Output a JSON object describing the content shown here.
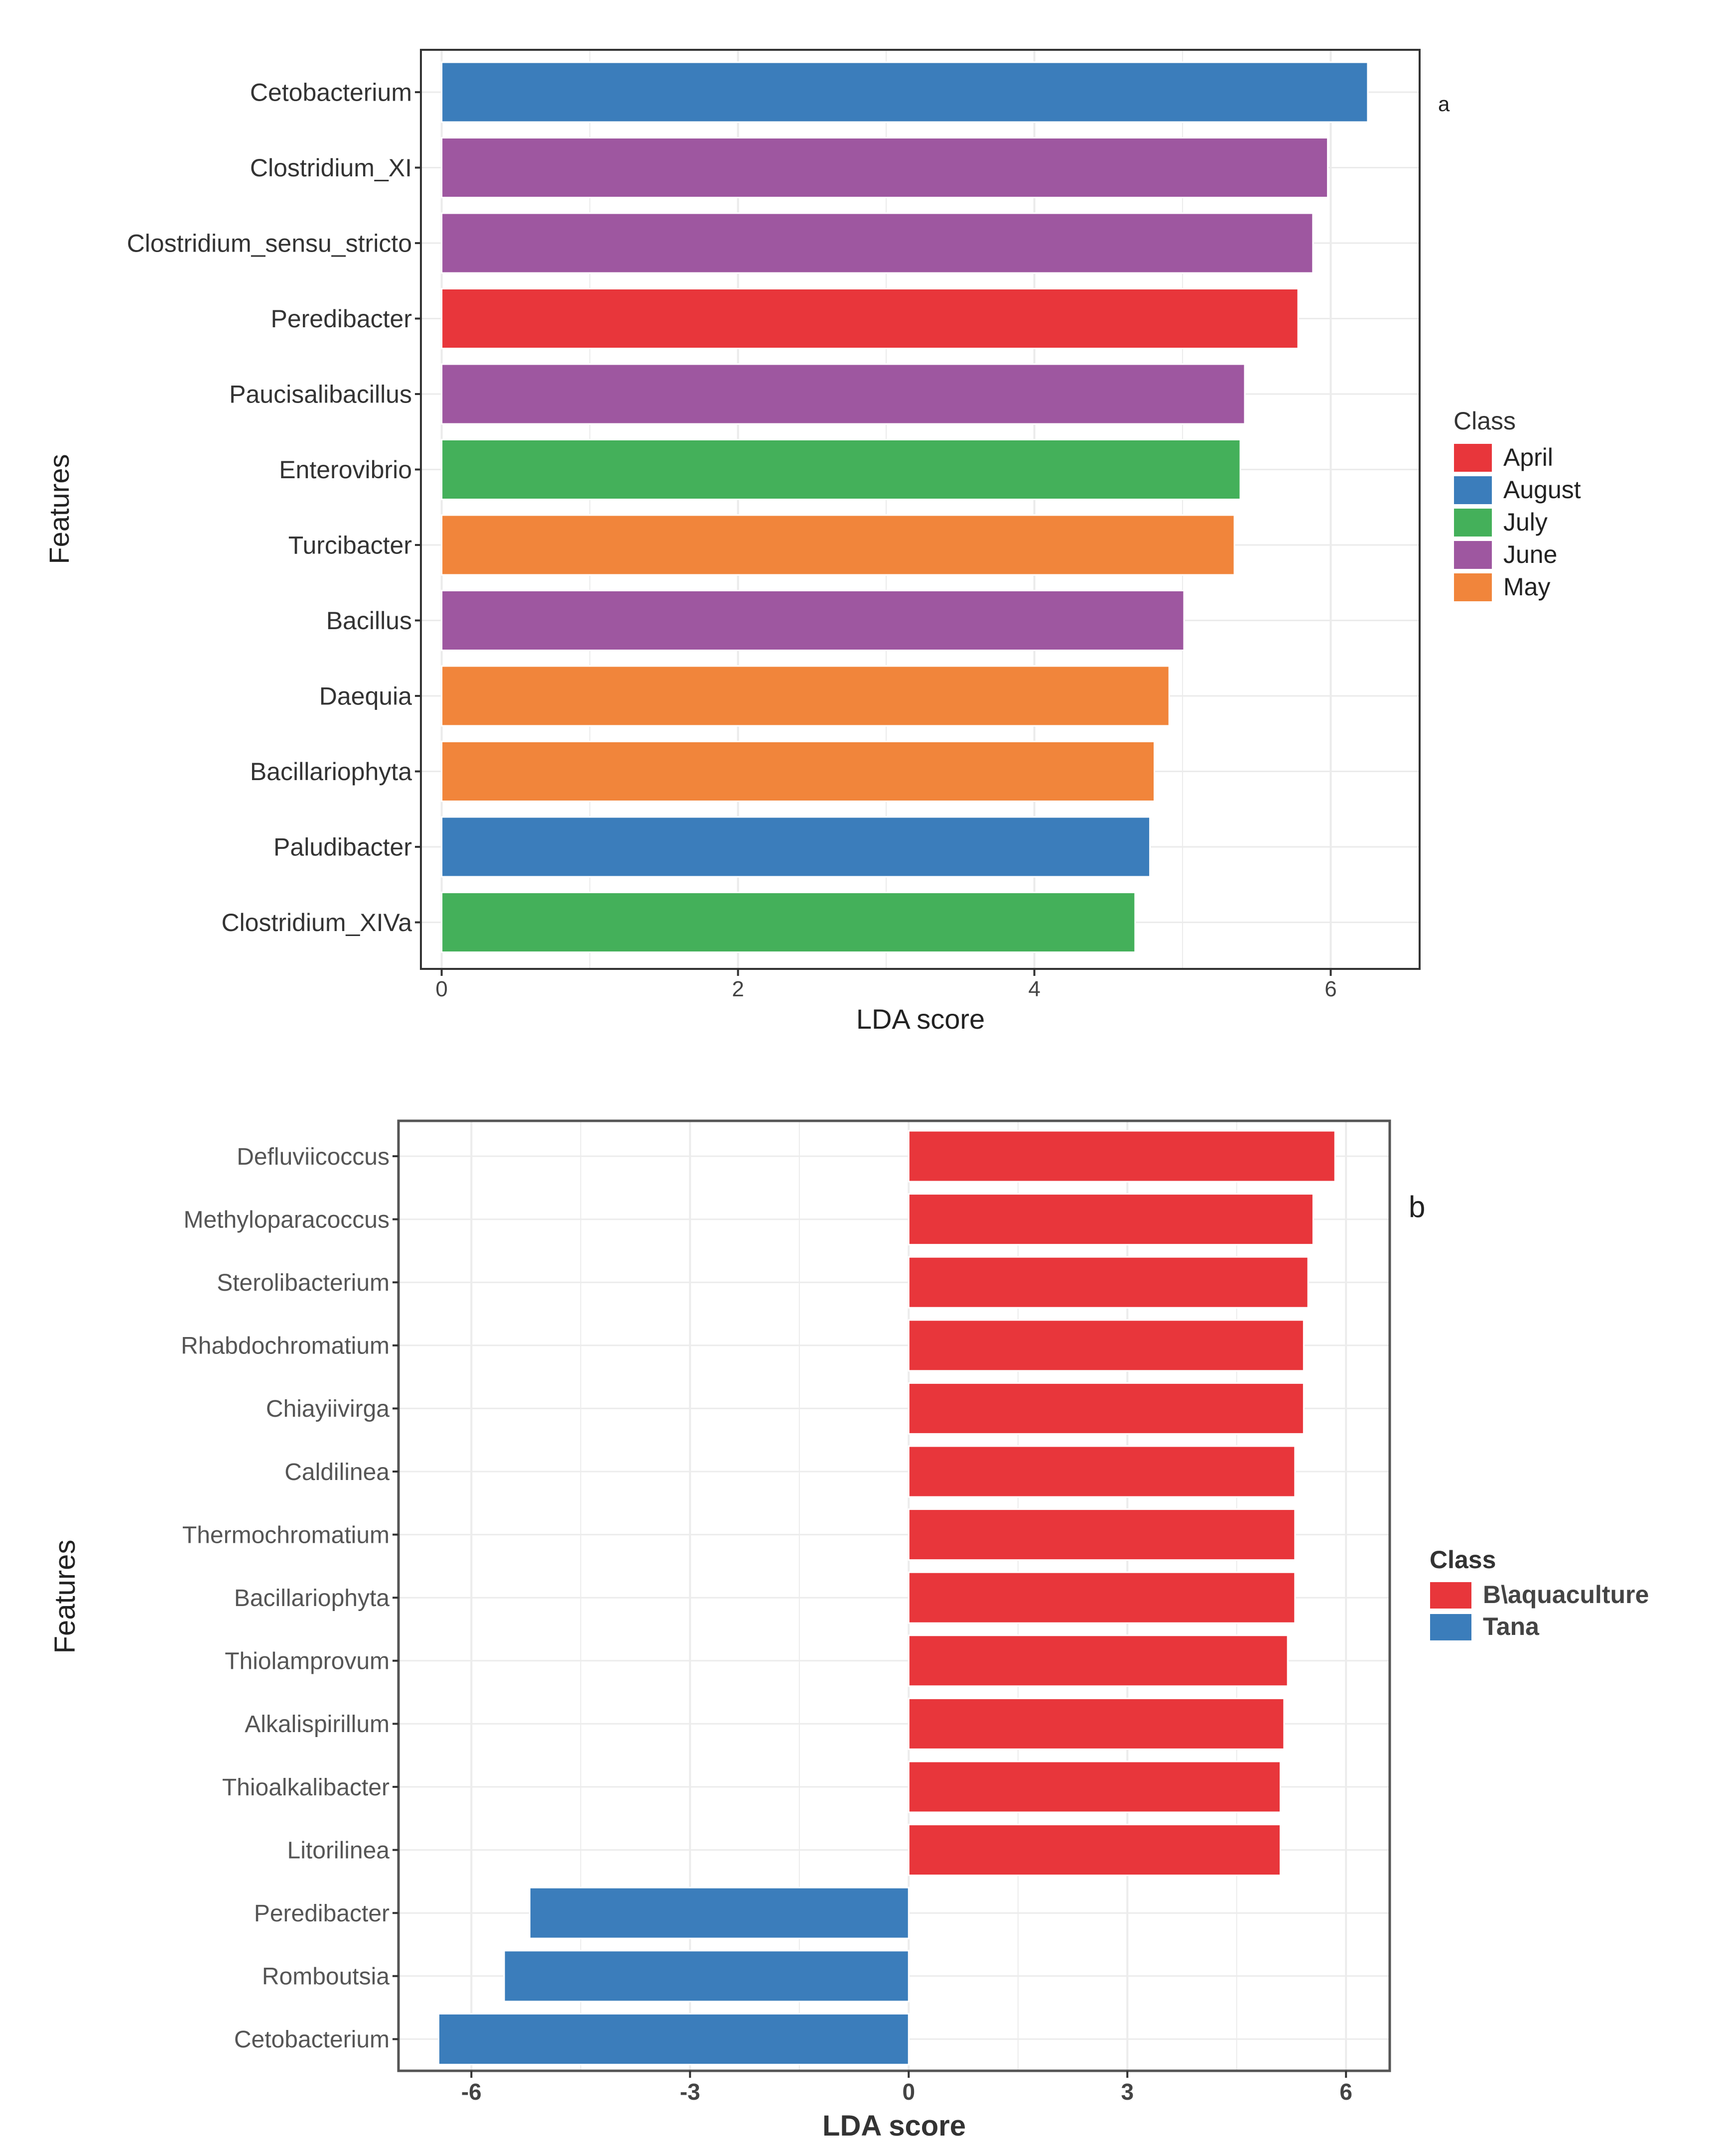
{
  "chart_data": [
    {
      "type": "bar",
      "orientation": "horizontal",
      "panel_label": "a",
      "xlabel": "LDA score",
      "ylabel": "Features",
      "xlim": [
        -0.14,
        6.6
      ],
      "xticks": [
        0,
        2,
        4,
        6
      ],
      "grid": true,
      "legend": {
        "title": "Class",
        "placement": "right",
        "entries": [
          {
            "label": "April",
            "color": "#e8363b"
          },
          {
            "label": "August",
            "color": "#3b7dbb"
          },
          {
            "label": "July",
            "color": "#44b05a"
          },
          {
            "label": "June",
            "color": "#9e57a0"
          },
          {
            "label": "May",
            "color": "#f1853b"
          }
        ]
      },
      "categories": [
        "Cetobacterium",
        "Clostridium_XI",
        "Clostridium_sensu_stricto",
        "Peredibacter",
        "Paucisalibacillus",
        "Enterovibrio",
        "Turcibacter",
        "Bacillus",
        "Daequia",
        "Bacillariophyta",
        "Paludibacter",
        "Clostridium_XIVa"
      ],
      "values": [
        6.25,
        5.98,
        5.88,
        5.78,
        5.42,
        5.39,
        5.35,
        5.01,
        4.91,
        4.81,
        4.78,
        4.68
      ],
      "classes": [
        "August",
        "June",
        "June",
        "April",
        "June",
        "July",
        "May",
        "June",
        "May",
        "May",
        "August",
        "July"
      ]
    },
    {
      "type": "bar",
      "orientation": "horizontal",
      "panel_label": "b",
      "xlabel": "LDA score",
      "ylabel": "Features",
      "xlim": [
        -7.0,
        6.6
      ],
      "xticks": [
        -6,
        -3,
        0,
        3,
        6
      ],
      "grid": true,
      "legend": {
        "title": "Class",
        "placement": "right",
        "entries": [
          {
            "label": "B\\aquaculture",
            "color": "#e8363b"
          },
          {
            "label": "Tana",
            "color": "#3b7dbb"
          }
        ]
      },
      "categories": [
        "Defluviicoccus",
        "Methyloparacoccus",
        "Sterolibacterium",
        "Rhabdochromatium",
        "Chiayiivirga",
        "Caldilinea",
        "Thermochromatium",
        "Bacillariophyta",
        "Thiolamprovum",
        "Alkalispirillum",
        "Thioalkalibacter",
        "Litorilinea",
        "Peredibacter",
        "Romboutsia",
        "Cetobacterium"
      ],
      "values": [
        5.85,
        5.55,
        5.48,
        5.42,
        5.42,
        5.3,
        5.3,
        5.3,
        5.2,
        5.15,
        5.1,
        5.1,
        -5.2,
        -5.55,
        -6.45
      ],
      "classes": [
        "B\\aquaculture",
        "B\\aquaculture",
        "B\\aquaculture",
        "B\\aquaculture",
        "B\\aquaculture",
        "B\\aquaculture",
        "B\\aquaculture",
        "B\\aquaculture",
        "B\\aquaculture",
        "B\\aquaculture",
        "B\\aquaculture",
        "B\\aquaculture",
        "Tana",
        "Tana",
        "Tana"
      ]
    }
  ]
}
